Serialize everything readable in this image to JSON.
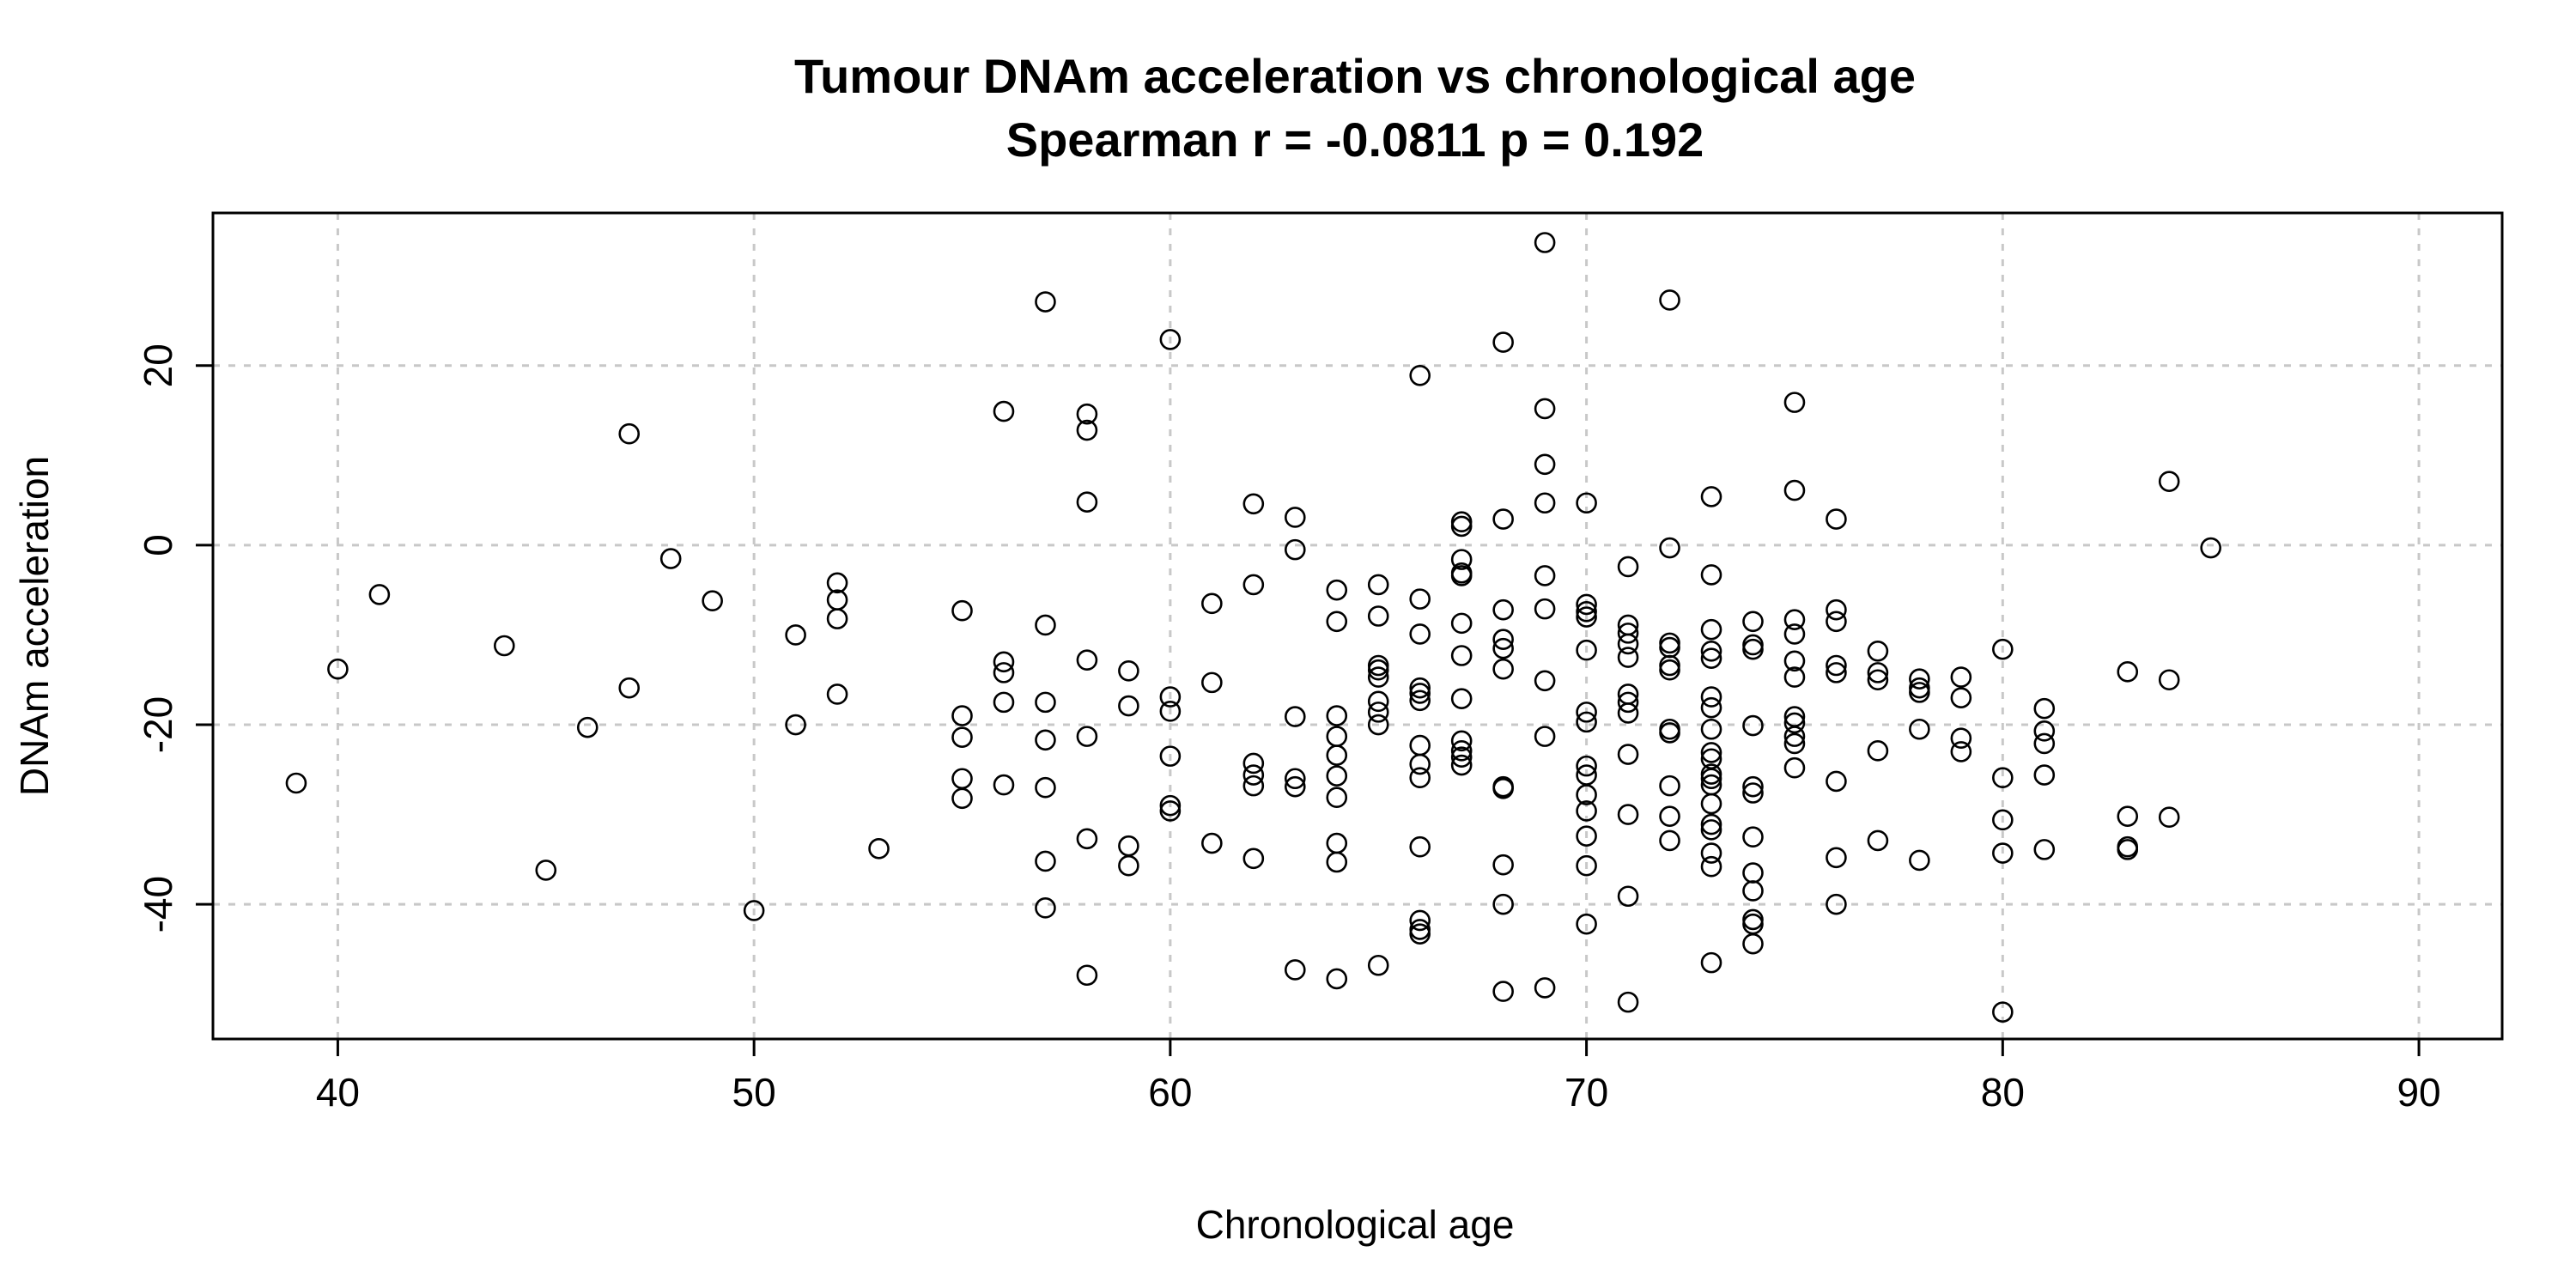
{
  "chart_data": {
    "type": "scatter",
    "title": "Tumour DNAm acceleration vs chronological age",
    "subtitle": "Spearman r = -0.0811 p =  0.192",
    "xlabel": "Chronological age",
    "ylabel": "DNAm acceleration",
    "xlim": [
      37,
      92
    ],
    "ylim": [
      -55,
      37
    ],
    "xticks": [
      40,
      50,
      60,
      70,
      80,
      90
    ],
    "yticks": [
      -40,
      -20,
      0,
      20
    ],
    "grid": true,
    "point_color": "#000000",
    "grid_color": "#c8c8c8",
    "points": [
      [
        39,
        -26.5
      ],
      [
        40,
        -13.8
      ],
      [
        41,
        -5.5
      ],
      [
        44,
        -11.2
      ],
      [
        45,
        -36.2
      ],
      [
        46,
        -20.3
      ],
      [
        47,
        12.4
      ],
      [
        47,
        -15.9
      ],
      [
        48,
        -1.5
      ],
      [
        49,
        -6.2
      ],
      [
        50,
        -40.7
      ],
      [
        51,
        -10.0
      ],
      [
        51,
        -20.0
      ],
      [
        52,
        -4.2
      ],
      [
        52,
        -6.1
      ],
      [
        52,
        -8.2
      ],
      [
        52,
        -16.6
      ],
      [
        53,
        -33.8
      ],
      [
        55,
        -7.3
      ],
      [
        55,
        -19.0
      ],
      [
        55,
        -21.4
      ],
      [
        55,
        -26.0
      ],
      [
        55,
        -28.2
      ],
      [
        56,
        14.9
      ],
      [
        56,
        -13.0
      ],
      [
        56,
        -14.2
      ],
      [
        56,
        -17.5
      ],
      [
        56,
        -26.7
      ],
      [
        57,
        27.1
      ],
      [
        57,
        -8.9
      ],
      [
        57,
        -17.5
      ],
      [
        57,
        -21.7
      ],
      [
        57,
        -27.0
      ],
      [
        57,
        -35.2
      ],
      [
        57,
        -40.4
      ],
      [
        58,
        14.6
      ],
      [
        58,
        12.8
      ],
      [
        58,
        4.8
      ],
      [
        58,
        -12.8
      ],
      [
        58,
        -21.3
      ],
      [
        58,
        -32.7
      ],
      [
        58,
        -47.9
      ],
      [
        59,
        -14.0
      ],
      [
        59,
        -17.9
      ],
      [
        59,
        -33.5
      ],
      [
        59,
        -35.7
      ],
      [
        60,
        22.9
      ],
      [
        60,
        -16.9
      ],
      [
        60,
        -18.5
      ],
      [
        60,
        -23.5
      ],
      [
        60,
        -29.0
      ],
      [
        60,
        -29.6
      ],
      [
        61,
        -6.5
      ],
      [
        61,
        -15.3
      ],
      [
        61,
        -33.2
      ],
      [
        62,
        4.6
      ],
      [
        62,
        -4.4
      ],
      [
        62,
        -24.3
      ],
      [
        62,
        -25.6
      ],
      [
        62,
        -26.8
      ],
      [
        62,
        -34.9
      ],
      [
        63,
        3.1
      ],
      [
        63,
        -0.5
      ],
      [
        63,
        -19.1
      ],
      [
        63,
        -26.0
      ],
      [
        63,
        -26.9
      ],
      [
        63,
        -47.3
      ],
      [
        64,
        -5.0
      ],
      [
        64,
        -8.5
      ],
      [
        64,
        -19.0
      ],
      [
        64,
        -21.3
      ],
      [
        64,
        -23.4
      ],
      [
        64,
        -25.7
      ],
      [
        64,
        -28.1
      ],
      [
        64,
        -33.2
      ],
      [
        64,
        -35.3
      ],
      [
        64,
        -48.3
      ],
      [
        65,
        -4.4
      ],
      [
        65,
        -7.9
      ],
      [
        65,
        -13.4
      ],
      [
        65,
        -13.9
      ],
      [
        65,
        -14.7
      ],
      [
        65,
        -17.4
      ],
      [
        65,
        -18.6
      ],
      [
        65,
        -20.0
      ],
      [
        65,
        -46.8
      ],
      [
        66,
        18.9
      ],
      [
        66,
        -6.0
      ],
      [
        66,
        -9.9
      ],
      [
        66,
        -15.9
      ],
      [
        66,
        -16.5
      ],
      [
        66,
        -17.3
      ],
      [
        66,
        -22.3
      ],
      [
        66,
        -24.4
      ],
      [
        66,
        -25.9
      ],
      [
        66,
        -33.6
      ],
      [
        66,
        -41.8
      ],
      [
        66,
        -42.8
      ],
      [
        66,
        -43.3
      ],
      [
        67,
        2.6
      ],
      [
        67,
        2.1
      ],
      [
        67,
        -1.6
      ],
      [
        67,
        -3.1
      ],
      [
        67,
        -3.4
      ],
      [
        67,
        -8.7
      ],
      [
        67,
        -12.3
      ],
      [
        67,
        -17.1
      ],
      [
        67,
        -21.8
      ],
      [
        67,
        -22.9
      ],
      [
        67,
        -23.6
      ],
      [
        67,
        -24.5
      ],
      [
        68,
        22.6
      ],
      [
        68,
        2.9
      ],
      [
        68,
        -7.2
      ],
      [
        68,
        -10.5
      ],
      [
        68,
        -11.5
      ],
      [
        68,
        -13.8
      ],
      [
        68,
        -26.9
      ],
      [
        68,
        -27.1
      ],
      [
        68,
        -35.6
      ],
      [
        68,
        -40.0
      ],
      [
        68,
        -49.7
      ],
      [
        69,
        33.7
      ],
      [
        69,
        15.2
      ],
      [
        69,
        9.0
      ],
      [
        69,
        4.7
      ],
      [
        69,
        -3.4
      ],
      [
        69,
        -7.1
      ],
      [
        69,
        -15.1
      ],
      [
        69,
        -21.3
      ],
      [
        69,
        -49.3
      ],
      [
        70,
        4.7
      ],
      [
        70,
        -6.6
      ],
      [
        70,
        -7.4
      ],
      [
        70,
        -8.0
      ],
      [
        70,
        -11.7
      ],
      [
        70,
        -18.6
      ],
      [
        70,
        -19.7
      ],
      [
        70,
        -24.6
      ],
      [
        70,
        -25.6
      ],
      [
        70,
        -27.8
      ],
      [
        70,
        -29.6
      ],
      [
        70,
        -32.4
      ],
      [
        70,
        -35.7
      ],
      [
        70,
        -42.2
      ],
      [
        71,
        -2.4
      ],
      [
        71,
        -8.9
      ],
      [
        71,
        -9.8
      ],
      [
        71,
        -11.0
      ],
      [
        71,
        -12.5
      ],
      [
        71,
        -16.6
      ],
      [
        71,
        -17.5
      ],
      [
        71,
        -18.7
      ],
      [
        71,
        -23.3
      ],
      [
        71,
        -30.0
      ],
      [
        71,
        -39.1
      ],
      [
        71,
        -50.9
      ],
      [
        72,
        27.3
      ],
      [
        72,
        -0.3
      ],
      [
        72,
        -10.9
      ],
      [
        72,
        -11.4
      ],
      [
        72,
        -13.4
      ],
      [
        72,
        -13.9
      ],
      [
        72,
        -20.5
      ],
      [
        72,
        -20.9
      ],
      [
        72,
        -26.8
      ],
      [
        72,
        -30.2
      ],
      [
        72,
        -32.9
      ],
      [
        73,
        5.4
      ],
      [
        73,
        -3.3
      ],
      [
        73,
        -9.4
      ],
      [
        73,
        -11.8
      ],
      [
        73,
        -12.6
      ],
      [
        73,
        -16.9
      ],
      [
        73,
        -18.1
      ],
      [
        73,
        -20.5
      ],
      [
        73,
        -23.1
      ],
      [
        73,
        -23.8
      ],
      [
        73,
        -25.5
      ],
      [
        73,
        -26.0
      ],
      [
        73,
        -26.7
      ],
      [
        73,
        -28.8
      ],
      [
        73,
        -31.1
      ],
      [
        73,
        -31.7
      ],
      [
        73,
        -34.3
      ],
      [
        73,
        -35.8
      ],
      [
        73,
        -46.5
      ],
      [
        74,
        -8.5
      ],
      [
        74,
        -11.1
      ],
      [
        74,
        -11.6
      ],
      [
        74,
        -20.1
      ],
      [
        74,
        -26.9
      ],
      [
        74,
        -27.6
      ],
      [
        74,
        -32.5
      ],
      [
        74,
        -36.5
      ],
      [
        74,
        -38.5
      ],
      [
        74,
        -41.7
      ],
      [
        74,
        -42.2
      ],
      [
        74,
        -44.4
      ],
      [
        75,
        15.9
      ],
      [
        75,
        6.1
      ],
      [
        75,
        -8.3
      ],
      [
        75,
        -9.9
      ],
      [
        75,
        -12.9
      ],
      [
        75,
        -14.7
      ],
      [
        75,
        -19.1
      ],
      [
        75,
        -19.8
      ],
      [
        75,
        -21.3
      ],
      [
        75,
        -22.1
      ],
      [
        75,
        -24.8
      ],
      [
        76,
        2.9
      ],
      [
        76,
        -7.2
      ],
      [
        76,
        -8.5
      ],
      [
        76,
        -13.4
      ],
      [
        76,
        -14.2
      ],
      [
        76,
        -26.3
      ],
      [
        76,
        -34.8
      ],
      [
        76,
        -40.0
      ],
      [
        77,
        -11.8
      ],
      [
        77,
        -14.2
      ],
      [
        77,
        -15.0
      ],
      [
        77,
        -22.9
      ],
      [
        77,
        -32.9
      ],
      [
        78,
        -14.9
      ],
      [
        78,
        -15.9
      ],
      [
        78,
        -16.4
      ],
      [
        78,
        -20.5
      ],
      [
        78,
        -35.1
      ],
      [
        79,
        -14.7
      ],
      [
        79,
        -17.0
      ],
      [
        79,
        -21.5
      ],
      [
        79,
        -23.0
      ],
      [
        80,
        -11.6
      ],
      [
        80,
        -25.9
      ],
      [
        80,
        -30.6
      ],
      [
        80,
        -34.3
      ],
      [
        80,
        -52.0
      ],
      [
        81,
        -18.2
      ],
      [
        81,
        -20.7
      ],
      [
        81,
        -22.1
      ],
      [
        81,
        -25.6
      ],
      [
        81,
        -33.9
      ],
      [
        83,
        -14.1
      ],
      [
        83,
        -30.2
      ],
      [
        83,
        -33.6
      ],
      [
        83,
        -33.9
      ],
      [
        84,
        7.1
      ],
      [
        84,
        -15.0
      ],
      [
        84,
        -30.3
      ],
      [
        85,
        -0.3
      ]
    ]
  }
}
